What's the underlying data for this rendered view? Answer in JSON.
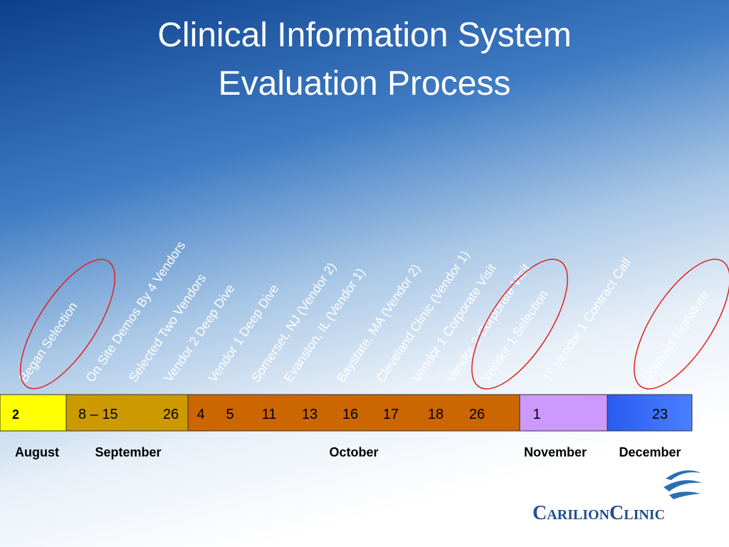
{
  "title": [
    "Clinical Information System",
    "Evaluation Process"
  ],
  "events": [
    {
      "label": "Began Selection"
    },
    {
      "label": "On Site Demos By 4 Vendors"
    },
    {
      "label": "Selected Two Vendors"
    },
    {
      "label": "Vendor 2 Deep Dive"
    },
    {
      "label": "Vendor 1 Deep Dive"
    },
    {
      "label": "Somerset, NJ (Vendor 2)"
    },
    {
      "label": "Evanston, IL (Vendor 1)"
    },
    {
      "label": "Baystate, MA (Vendor 2)"
    },
    {
      "label": "Cleveland Clinic (Vendor 1)"
    },
    {
      "label": "Vendor 1 Corporate Visit"
    },
    {
      "label": "Vendor 2 Corporate Visit"
    },
    {
      "label": "Vendor 1 Selection"
    },
    {
      "prefix": "1",
      "sup": "st",
      "label": "Vendor 1 Contract Call"
    },
    {
      "label": "Contract Signature"
    }
  ],
  "months": [
    {
      "name": "August",
      "dates": [
        2
      ]
    },
    {
      "name": "September",
      "dates": [
        "8 – 15",
        26
      ]
    },
    {
      "name": "October",
      "dates": [
        4,
        5,
        11,
        13,
        16,
        17,
        18,
        26
      ]
    },
    {
      "name": "November",
      "dates": [
        1
      ]
    },
    {
      "name": "December",
      "dates": [
        23
      ]
    }
  ],
  "logo": {
    "first": "Carilion",
    "second": "Clinic"
  }
}
